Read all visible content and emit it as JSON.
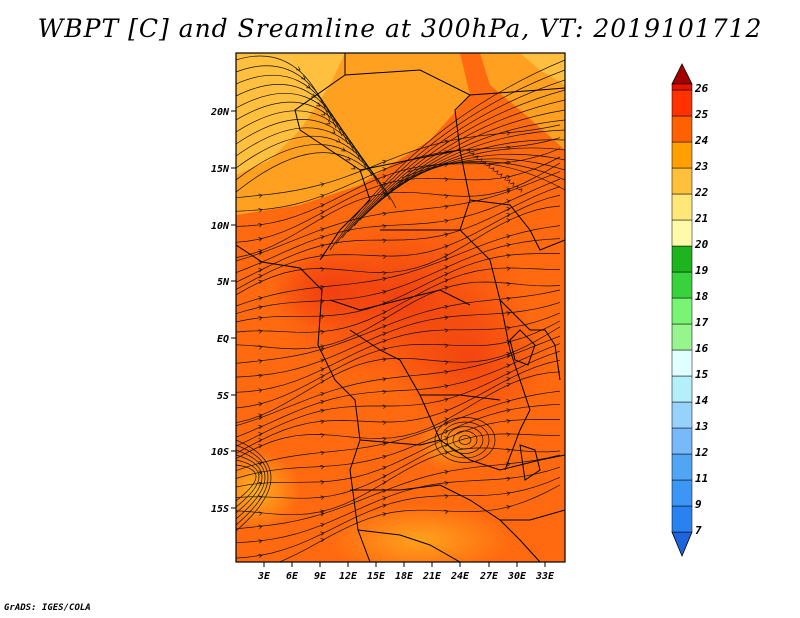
{
  "title": "WBPT [C] and Sreamline at 300hPa, VT: 2019101712",
  "credit": "GrADS: IGES/COLA",
  "map": {
    "lat_labels": [
      "20N",
      "15N",
      "10N",
      "5N",
      "EQ",
      "5S",
      "10S",
      "15S"
    ],
    "lon_labels": [
      "3E",
      "6E",
      "9E",
      "12E",
      "15E",
      "18E",
      "21E",
      "24E",
      "27E",
      "30E",
      "33E"
    ]
  },
  "colorbar": {
    "labels": [
      "7",
      "9",
      "11",
      "12",
      "13",
      "14",
      "15",
      "16",
      "17",
      "18",
      "19",
      "20",
      "21",
      "22",
      "23",
      "24",
      "25",
      "26"
    ],
    "colors": [
      "#1e64dc",
      "#2882f0",
      "#3c96f5",
      "#50a5f5",
      "#78b9fa",
      "#96d2fa",
      "#b4f0fa",
      "#e1ffff",
      "#96f58c",
      "#78f573",
      "#37d23c",
      "#1eb41e",
      "#fffaaa",
      "#ffe878",
      "#ffc03c",
      "#ffa000",
      "#ff6000",
      "#ff3200",
      "#e11400",
      "#c00000",
      "#a50000"
    ]
  }
}
